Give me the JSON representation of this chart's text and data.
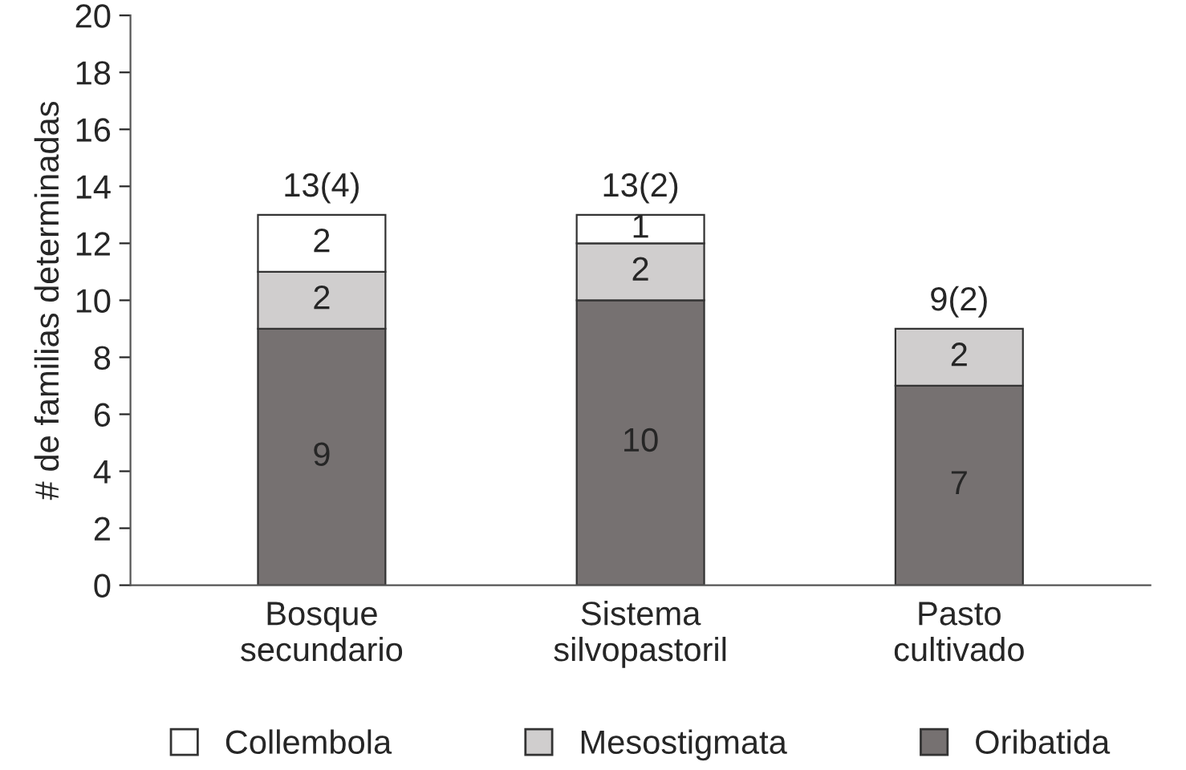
{
  "chart_data": {
    "type": "bar",
    "stacked": true,
    "ylabel": "# de familias determinadas",
    "categories": [
      "Bosque\nsecundario",
      "Sistema\nsilvopastoril",
      "Pasto\ncultivado"
    ],
    "series": [
      {
        "name": "Oribatida",
        "color": "#767171",
        "values": [
          9,
          10,
          7
        ],
        "value_labels": [
          "9",
          "10",
          "7"
        ]
      },
      {
        "name": "Mesostigmata",
        "color": "#d0cece",
        "values": [
          2,
          2,
          2
        ],
        "value_labels": [
          "2",
          "2",
          "2"
        ]
      },
      {
        "name": "Collembola",
        "color": "#ffffff",
        "values": [
          2,
          1,
          0
        ],
        "value_labels": [
          "2",
          "1",
          null
        ]
      }
    ],
    "totals": [
      "13(4)",
      "13(2)",
      "9(2)"
    ],
    "ylim": [
      0,
      20
    ],
    "yticks": [
      0,
      2,
      4,
      6,
      8,
      10,
      12,
      14,
      16,
      18,
      20
    ],
    "grid": false,
    "legend": "bottom"
  }
}
